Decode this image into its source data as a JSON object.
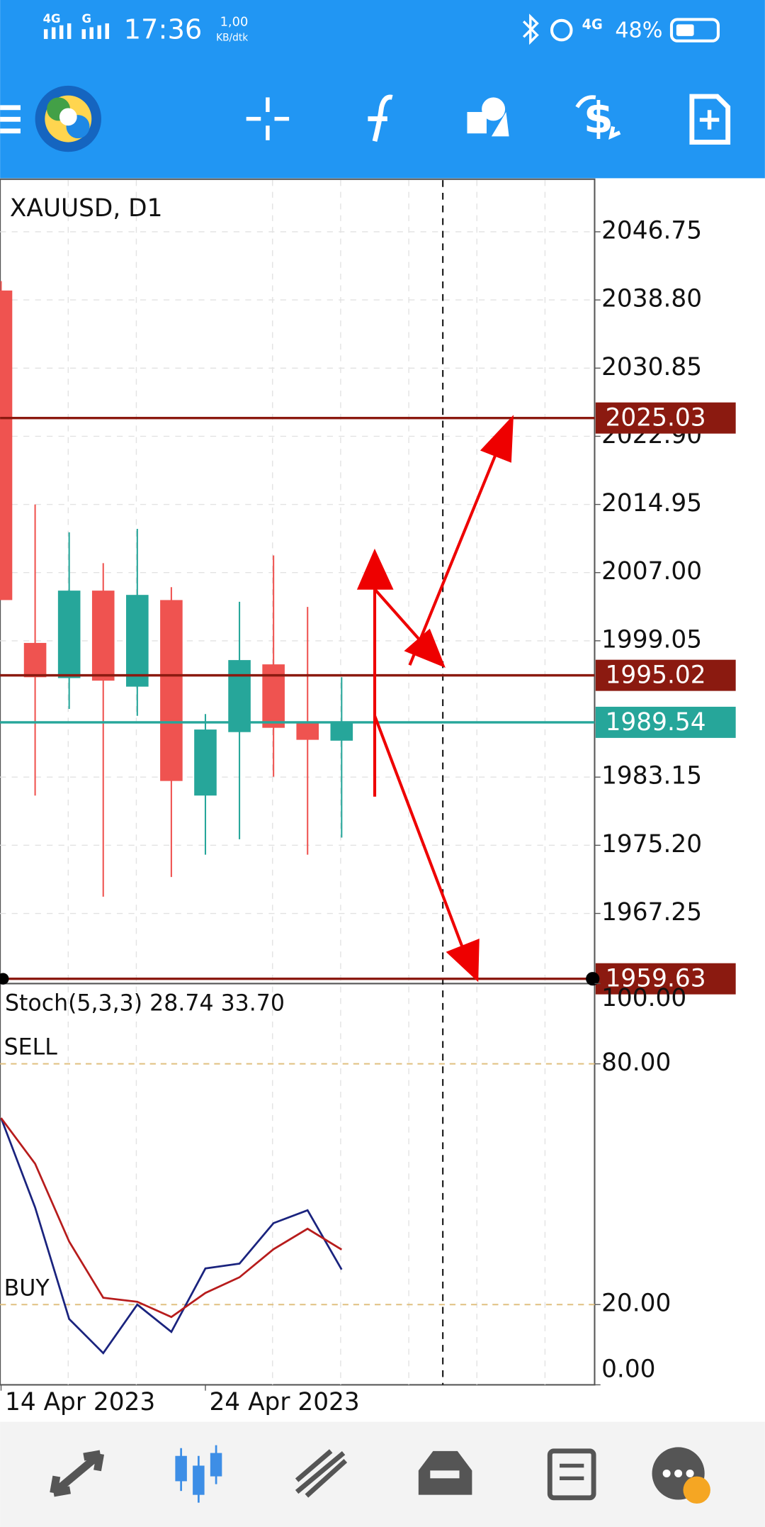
{
  "status_bar": {
    "network_1": "4G",
    "network_2": "G",
    "time": "17:36",
    "speed": "1,00",
    "speed_unit": "KB/dtk",
    "network_3": "4G",
    "battery": "48%"
  },
  "chart_data": [
    {
      "type": "candlestick",
      "title": "XAUUSD, D1",
      "categories": [
        "14 Apr 2023",
        null,
        null,
        null,
        null,
        null,
        "24 Apr 2023",
        null,
        null,
        null,
        null
      ],
      "open": [
        2039.9,
        1998.8,
        1994.7,
        2004.9,
        1993.7,
        2003.8,
        1981.0,
        1988.4,
        1996.3,
        1989.5,
        1987.4
      ],
      "high": [
        2041.0,
        2014.95,
        2011.7,
        2008.1,
        2012.1,
        2005.3,
        1990.5,
        2003.6,
        2009.0,
        2003.0,
        1994.8
      ],
      "low": [
        2003.8,
        1981.0,
        1991.1,
        1969.2,
        1990.3,
        1971.5,
        1974.1,
        1975.9,
        1983.2,
        1974.1,
        1976.1
      ],
      "close": [
        2003.8,
        1994.8,
        2004.9,
        1994.4,
        2004.4,
        1982.7,
        1988.7,
        1996.8,
        1988.9,
        1987.5,
        1989.54
      ],
      "up_color": "#26a69a",
      "down_color": "#ef5350",
      "ylim": [
        1959.07,
        2052.77
      ],
      "yticks": [
        2046.75,
        {
          "value": 2038.8,
          "label": "2038.80"
        },
        2030.85,
        {
          "value": 2022.9,
          "label": "2022.90"
        },
        2014.95,
        {
          "value": 2007.0,
          "label": "2007.00"
        },
        1999.05,
        1983.15,
        {
          "value": 1975.2,
          "label": "1975.20"
        },
        1967.25
      ],
      "grid": true,
      "price_lines": [
        {
          "value": 2025.03,
          "color": "#8b1a10"
        },
        {
          "value": 1995.02,
          "color": "#8b1a10"
        },
        {
          "value": 1989.54,
          "color": "#26a69a"
        },
        {
          "value": 1959.63,
          "color": "#8b1a10"
        }
      ]
    },
    {
      "type": "line",
      "title": "Stoch(5,3,3) 28.74 33.70",
      "series": [
        {
          "color": "#1a237e",
          "values": [
            66.5,
            44.2,
            16.4,
            7.9,
            20.0,
            13.2,
            29.0,
            30.2,
            40.3,
            43.5,
            28.74
          ]
        },
        {
          "color": "#b71c1c",
          "values": [
            66.5,
            55.1,
            35.7,
            21.7,
            20.7,
            16.9,
            22.9,
            26.8,
            33.8,
            38.9,
            33.7
          ]
        }
      ],
      "ylim": [
        0,
        100
      ],
      "yticks": [
        {
          "value": 100,
          "label": "100.00"
        },
        {
          "value": 80,
          "label": "80.00"
        },
        {
          "value": 20,
          "label": "20.00"
        },
        {
          "value": 0,
          "label": "0.00"
        }
      ],
      "levels": [
        {
          "value": 80,
          "label": "SELL"
        },
        {
          "value": 20,
          "label": "BUY"
        }
      ]
    }
  ]
}
